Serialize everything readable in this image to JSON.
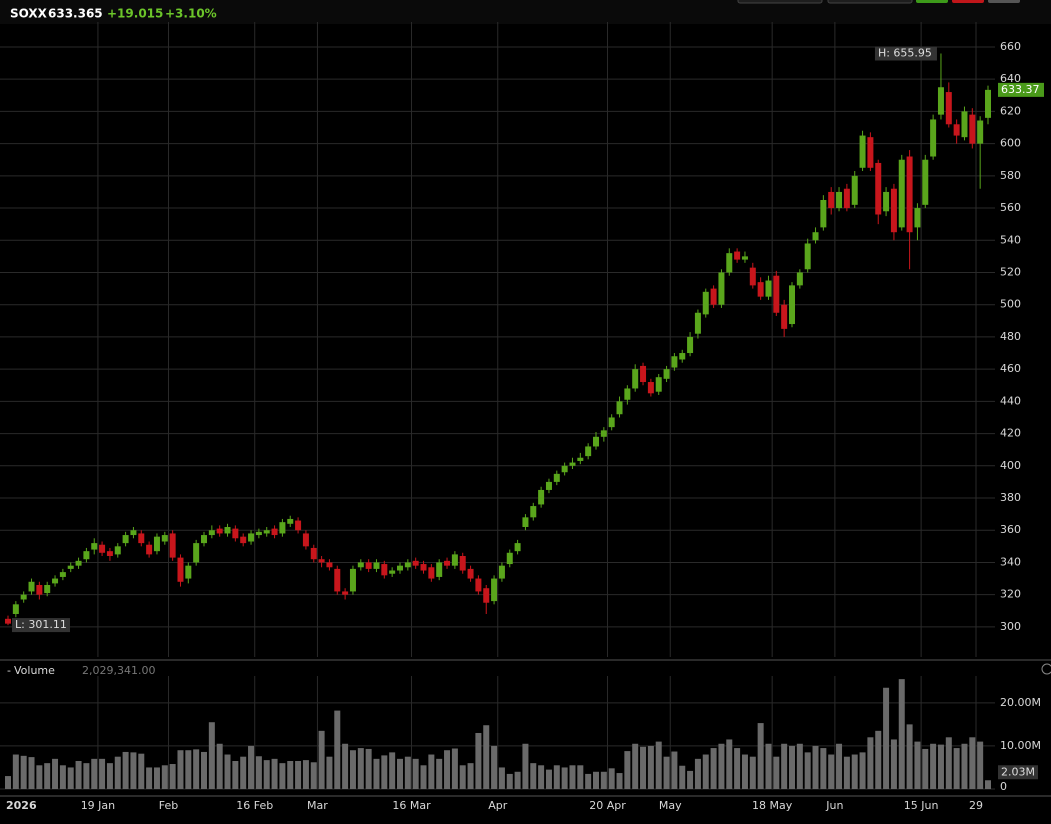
{
  "chart_data": {
    "type": "candlestick",
    "symbol": "SOXX",
    "last": "633.365",
    "change": "+19.015",
    "change_pct": "+3.10%",
    "last_label": {
      "value": 633.365,
      "label": "633.37"
    },
    "high_label": "H: 655.95",
    "low_label": "L: 301.11",
    "volume_title": "Volume",
    "volume_header": "2,029,341.00",
    "categories": [
      "2026",
      null,
      null,
      null,
      null,
      null,
      null,
      null,
      null,
      null,
      null,
      null,
      null,
      "19 Jan",
      null,
      null,
      null,
      null,
      null,
      null,
      null,
      null,
      "Feb",
      null,
      null,
      null,
      null,
      null,
      null,
      null,
      null,
      null,
      null,
      "16 Feb",
      null,
      null,
      null,
      null,
      null,
      null,
      null,
      "Mar",
      null,
      null,
      null,
      null,
      null,
      null,
      null,
      null,
      null,
      null,
      null,
      "16 Mar",
      null,
      null,
      null,
      null,
      null,
      null,
      null,
      null,
      null,
      null,
      "Apr",
      null,
      null,
      null,
      null,
      null,
      null,
      null,
      null,
      null,
      null,
      null,
      null,
      null,
      "20 Apr",
      null,
      null,
      null,
      null,
      null,
      null,
      null,
      "May",
      null,
      null,
      null,
      null,
      null,
      null,
      null,
      null,
      null,
      null,
      null,
      null,
      "18 May",
      null,
      null,
      null,
      null,
      null,
      null,
      null,
      "Jun",
      null,
      null,
      null,
      null,
      null,
      null,
      null,
      null,
      null,
      null,
      "15 Jun",
      null,
      null,
      null,
      null,
      null,
      null,
      "29"
    ],
    "open": [
      305,
      308,
      317,
      322,
      326,
      321,
      327,
      331,
      336,
      338,
      342,
      348,
      351,
      347,
      345,
      352,
      357,
      358,
      351,
      347,
      353,
      358,
      343,
      330,
      340,
      352,
      357,
      361,
      358,
      361,
      356,
      353,
      357,
      358,
      361,
      358,
      364,
      366,
      358,
      349,
      342,
      340,
      336,
      322,
      322,
      337,
      340,
      336,
      339,
      333,
      335,
      337,
      341,
      339,
      337,
      331,
      341,
      338,
      344,
      336,
      330,
      324,
      316,
      330,
      339,
      347,
      362,
      368,
      376,
      385,
      390,
      396,
      400,
      403,
      406,
      412,
      418,
      424,
      432,
      441,
      448,
      462,
      452,
      446,
      454,
      461,
      466,
      470,
      482,
      494,
      510,
      500,
      520,
      533,
      528,
      523,
      514,
      505,
      518,
      500,
      488,
      512,
      522,
      540,
      548,
      570,
      560,
      572,
      562,
      585,
      604,
      588,
      558,
      572,
      548,
      592,
      548,
      562,
      592,
      618,
      632,
      612,
      604,
      618,
      600,
      616
    ],
    "high": [
      307,
      316,
      322,
      330,
      328,
      328,
      332,
      336,
      340,
      343,
      349,
      355,
      353,
      349,
      352,
      359,
      362,
      360,
      353,
      358,
      359,
      360,
      345,
      340,
      354,
      359,
      363,
      363,
      364,
      363,
      358,
      360,
      361,
      362,
      363,
      367,
      369,
      368,
      360,
      351,
      344,
      342,
      338,
      324,
      338,
      342,
      342,
      342,
      341,
      337,
      340,
      342,
      343,
      341,
      339,
      342,
      343,
      347,
      346,
      338,
      332,
      326,
      332,
      340,
      348,
      354,
      370,
      377,
      387,
      392,
      397,
      402,
      405,
      408,
      414,
      421,
      424,
      432,
      443,
      450,
      463,
      464,
      454,
      457,
      462,
      470,
      472,
      483,
      497,
      510,
      512,
      522,
      535,
      535,
      533,
      526,
      517,
      518,
      521,
      503,
      514,
      522,
      541,
      548,
      568,
      573,
      573,
      575,
      583,
      608,
      607,
      590,
      573,
      575,
      593,
      596,
      563,
      593,
      618,
      655.95,
      638,
      615,
      623,
      622,
      617,
      636
    ],
    "low": [
      301.11,
      306,
      315,
      320,
      317,
      319,
      325,
      329,
      334,
      336,
      340,
      345,
      344,
      341,
      343,
      350,
      355,
      350,
      343,
      345,
      351,
      341,
      325,
      327,
      338,
      350,
      355,
      356,
      356,
      353,
      350,
      351,
      355,
      356,
      355,
      356,
      362,
      358,
      348,
      340,
      337,
      335,
      320,
      317,
      320,
      335,
      334,
      334,
      330,
      331,
      333,
      335,
      336,
      333,
      328,
      329,
      336,
      336,
      333,
      328,
      320,
      308,
      314,
      328,
      337,
      345,
      360,
      366,
      374,
      383,
      388,
      394,
      398,
      401,
      404,
      410,
      415,
      422,
      430,
      438,
      446,
      450,
      443,
      444,
      452,
      459,
      464,
      468,
      479,
      492,
      498,
      498,
      518,
      526,
      526,
      510,
      503,
      503,
      493,
      480,
      486,
      510,
      520,
      538,
      546,
      556,
      558,
      558,
      560,
      583,
      583,
      550,
      555,
      540,
      546,
      522,
      540,
      560,
      590,
      615,
      610,
      600,
      602,
      597,
      572,
      612
    ],
    "close": [
      302,
      314,
      320,
      328,
      320,
      326,
      330,
      334,
      338,
      341,
      347,
      352,
      346,
      344,
      350,
      357,
      360,
      352,
      345,
      356,
      357,
      343,
      328,
      338,
      352,
      357,
      360,
      358,
      362,
      355,
      352,
      358,
      359,
      360,
      357,
      365,
      367,
      360,
      350,
      342,
      340,
      337,
      322,
      320,
      336,
      340,
      336,
      340,
      332,
      335,
      338,
      340,
      338,
      335,
      330,
      340,
      338,
      345,
      335,
      330,
      322,
      315,
      330,
      338,
      346,
      352,
      368,
      375,
      385,
      390,
      395,
      400,
      402,
      405,
      412,
      418,
      422,
      430,
      440,
      448,
      460,
      452,
      445,
      455,
      460,
      468,
      470,
      480,
      495,
      508,
      500,
      520,
      532,
      528,
      530,
      512,
      505,
      515,
      495,
      485,
      512,
      520,
      538,
      545,
      565,
      560,
      570,
      560,
      580,
      605,
      585,
      556,
      570,
      545,
      590,
      545,
      560,
      590,
      615,
      635,
      612,
      605,
      620,
      600,
      614.35,
      633.365
    ],
    "volume": [
      3,
      8,
      7.7,
      7.4,
      5.5,
      6,
      7,
      5.5,
      5,
      6.5,
      6,
      7,
      7,
      6,
      7.5,
      8.6,
      8.5,
      8.2,
      5,
      5,
      5.5,
      5.8,
      9,
      9,
      9.2,
      8.6,
      15.5,
      10.5,
      8,
      6.5,
      7.5,
      10,
      7.6,
      6.7,
      7,
      6,
      6.5,
      6.5,
      6.7,
      6.2,
      13.5,
      7.5,
      18.2,
      10.5,
      9,
      9.5,
      9.3,
      7,
      7.8,
      8.5,
      7,
      7.5,
      7,
      5.5,
      8,
      7,
      9,
      9.4,
      5.5,
      6,
      13,
      14.8,
      10,
      5,
      3.5,
      4,
      10.5,
      6,
      5.5,
      4.5,
      5.5,
      5,
      5.5,
      5.5,
      3.5,
      4,
      4,
      4.8,
      3.7,
      8.8,
      10.5,
      9.8,
      10,
      11,
      7.5,
      8.7,
      5.4,
      4.2,
      7,
      8,
      9.5,
      10.5,
      11.5,
      9.5,
      8,
      7.5,
      15.3,
      10.5,
      7.5,
      10.5,
      10,
      10.5,
      8.5,
      10,
      9.5,
      8,
      10.5,
      7.5,
      8,
      8.5,
      12,
      13.5,
      23.5,
      11.5,
      25.5,
      15,
      11,
      9.3,
      10.5,
      10.3,
      12,
      9.5,
      10.5,
      12,
      11,
      2.029341
    ],
    "volume_label": {
      "value": 2.029341,
      "label": "2.03M"
    },
    "up_color": "#5aa61c",
    "down_color": "#c8161c",
    "volume_color": "#6a6a6a",
    "ylim": [
      281.3,
      675.5
    ],
    "yticks": [
      300,
      320,
      340,
      360,
      380,
      400,
      420,
      440,
      460,
      480,
      500,
      520,
      540,
      560,
      580,
      600,
      620,
      640,
      660
    ],
    "volume_ylim": [
      0,
      25.3
    ],
    "volume_yticks": [
      0,
      {
        "value": 10,
        "label": "10.00M"
      },
      {
        "value": 20,
        "label": "20.00M"
      }
    ],
    "grid": true
  }
}
